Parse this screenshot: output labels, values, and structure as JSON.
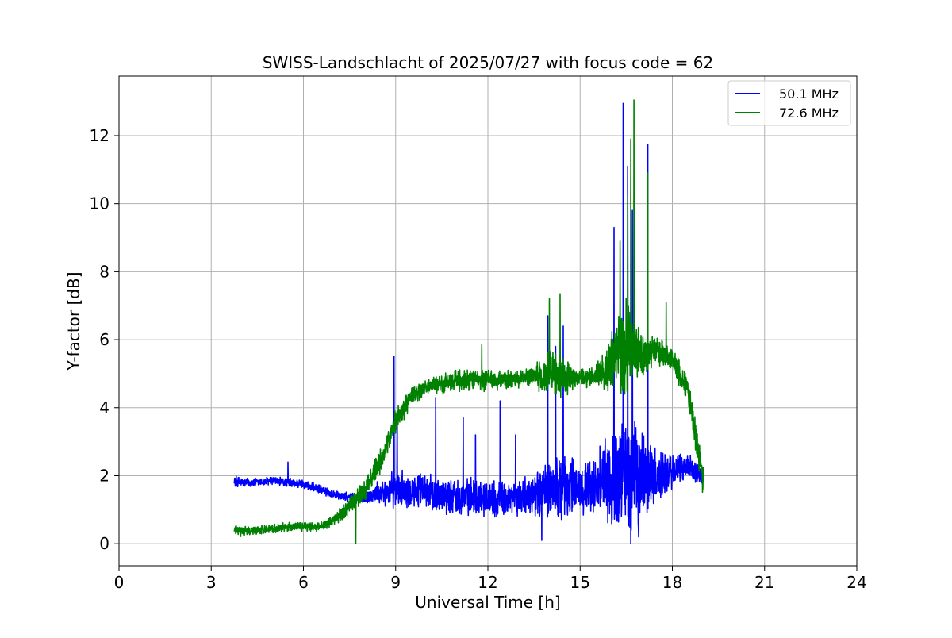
{
  "chart_data": {
    "type": "line",
    "title": "SWISS-Landschlacht of 2025/07/27 with focus code = 62",
    "xlabel": "Universal Time [h]",
    "ylabel": "Y-factor [dB]",
    "xlim": [
      0,
      24
    ],
    "ylim": [
      -0.65,
      13.75
    ],
    "xticks": [
      0,
      3,
      6,
      9,
      12,
      15,
      18,
      21,
      24
    ],
    "xtick_labels": [
      "0",
      "3",
      "6",
      "9",
      "12",
      "15",
      "18",
      "21",
      "24"
    ],
    "yticks": [
      0,
      2,
      4,
      6,
      8,
      10,
      12
    ],
    "ytick_labels": [
      "0",
      "2",
      "4",
      "6",
      "8",
      "10",
      "12"
    ],
    "grid": true,
    "legend_position": "top-right",
    "series": [
      {
        "name": "50.1 MHz",
        "color": "#0000ff",
        "x": [
          3.75,
          4.0,
          4.5,
          5.0,
          5.5,
          6.0,
          6.5,
          7.0,
          7.5,
          8.0,
          8.5,
          9.0,
          9.5,
          10.0,
          10.5,
          11.0,
          11.5,
          12.0,
          12.5,
          13.0,
          13.5,
          14.0,
          14.5,
          15.0,
          15.5,
          16.0,
          16.5,
          17.0,
          17.5,
          18.0,
          18.5,
          19.0
        ],
        "y": [
          1.85,
          1.8,
          1.8,
          1.85,
          1.8,
          1.75,
          1.6,
          1.45,
          1.35,
          1.35,
          1.5,
          1.6,
          1.6,
          1.5,
          1.45,
          1.4,
          1.4,
          1.35,
          1.3,
          1.35,
          1.45,
          1.6,
          1.7,
          1.65,
          1.7,
          1.9,
          2.1,
          2.0,
          1.95,
          2.1,
          2.3,
          2.0
        ],
        "noise_amplitude": [
          0.2,
          0.15,
          0.15,
          0.15,
          0.15,
          0.15,
          0.15,
          0.15,
          0.15,
          0.2,
          0.4,
          0.6,
          0.6,
          0.6,
          0.6,
          0.6,
          0.6,
          0.6,
          0.6,
          0.6,
          0.7,
          1.0,
          1.2,
          0.8,
          1.0,
          1.6,
          2.2,
          1.6,
          1.0,
          0.6,
          0.4,
          0.4
        ],
        "spikes": [
          {
            "x": 5.5,
            "y": 2.4
          },
          {
            "x": 8.95,
            "y": 5.5
          },
          {
            "x": 9.05,
            "y": 3.9
          },
          {
            "x": 10.3,
            "y": 4.3
          },
          {
            "x": 11.2,
            "y": 3.7
          },
          {
            "x": 11.6,
            "y": 3.2
          },
          {
            "x": 12.4,
            "y": 4.2
          },
          {
            "x": 12.9,
            "y": 3.2
          },
          {
            "x": 13.95,
            "y": 6.7
          },
          {
            "x": 14.2,
            "y": 5.8
          },
          {
            "x": 14.45,
            "y": 6.4
          },
          {
            "x": 16.1,
            "y": 9.3
          },
          {
            "x": 16.4,
            "y": 12.95
          },
          {
            "x": 16.55,
            "y": 11.1
          },
          {
            "x": 16.7,
            "y": 9.8
          },
          {
            "x": 17.2,
            "y": 11.75
          }
        ],
        "dips": [
          {
            "x": 13.75,
            "y": 0.1
          },
          {
            "x": 16.65,
            "y": 0.0
          },
          {
            "x": 16.9,
            "y": 0.2
          }
        ]
      },
      {
        "name": "72.6 MHz",
        "color": "#008000",
        "x": [
          3.75,
          4.0,
          4.5,
          5.0,
          5.5,
          6.0,
          6.5,
          7.0,
          7.5,
          8.0,
          8.5,
          9.0,
          9.5,
          10.0,
          10.5,
          11.0,
          11.5,
          12.0,
          12.5,
          13.0,
          13.5,
          14.0,
          14.5,
          15.0,
          15.5,
          16.0,
          16.5,
          17.0,
          17.5,
          18.0,
          18.5,
          19.0
        ],
        "y": [
          0.4,
          0.35,
          0.4,
          0.45,
          0.5,
          0.5,
          0.5,
          0.7,
          1.1,
          1.6,
          2.4,
          3.6,
          4.3,
          4.6,
          4.7,
          4.8,
          4.8,
          4.8,
          4.8,
          4.85,
          4.9,
          5.0,
          4.9,
          4.85,
          4.9,
          5.3,
          5.8,
          5.6,
          5.7,
          5.4,
          4.6,
          1.9
        ],
        "noise_amplitude": [
          0.15,
          0.15,
          0.15,
          0.15,
          0.15,
          0.15,
          0.15,
          0.2,
          0.3,
          0.35,
          0.4,
          0.4,
          0.35,
          0.3,
          0.3,
          0.35,
          0.4,
          0.35,
          0.3,
          0.3,
          0.35,
          0.8,
          0.6,
          0.3,
          0.4,
          1.0,
          1.6,
          0.7,
          0.5,
          0.4,
          0.5,
          0.6
        ],
        "spikes": [
          {
            "x": 11.8,
            "y": 5.85
          },
          {
            "x": 14.0,
            "y": 7.2
          },
          {
            "x": 14.35,
            "y": 7.35
          },
          {
            "x": 16.3,
            "y": 8.9
          },
          {
            "x": 16.55,
            "y": 10.2
          },
          {
            "x": 16.75,
            "y": 13.05
          },
          {
            "x": 16.65,
            "y": 11.9
          },
          {
            "x": 17.2,
            "y": 10.9
          },
          {
            "x": 17.8,
            "y": 7.1
          }
        ],
        "dips": [
          {
            "x": 7.7,
            "y": 0.0
          },
          {
            "x": 16.45,
            "y": 4.4
          }
        ]
      }
    ]
  }
}
